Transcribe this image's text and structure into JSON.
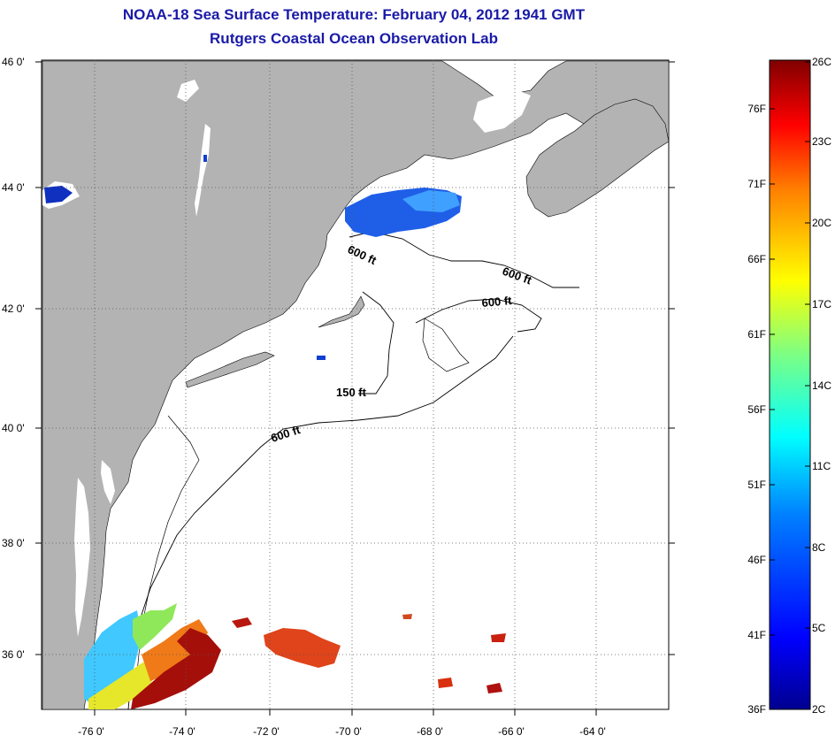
{
  "header": {
    "title": "NOAA-18 Sea Surface Temperature:  February 04, 2012 1941 GMT",
    "subtitle": "Rutgers Coastal Ocean Observation Lab"
  },
  "map": {
    "lat_labels": [
      "46 0'",
      "44 0'",
      "42 0'",
      "40 0'",
      "38 0'",
      "36 0'"
    ],
    "lon_labels": [
      "-76 0'",
      "-74 0'",
      "-72 0'",
      "-70 0'",
      "-68 0'",
      "-66 0'",
      "-64 0'"
    ],
    "contour_labels": [
      "600 ft",
      "600 ft",
      "600 ft",
      "150 ft",
      "600 ft"
    ],
    "colors": {
      "land": "#b3b3b3",
      "ocean": "#ffffff",
      "grid": "#555555"
    }
  },
  "colorbar": {
    "fahrenheit_labels": [
      "76F",
      "71F",
      "66F",
      "61F",
      "56F",
      "51F",
      "46F",
      "41F",
      "36F"
    ],
    "celsius_labels": [
      "26C",
      "23C",
      "20C",
      "17C",
      "14C",
      "11C",
      "8C",
      "5C",
      "2C"
    ],
    "colors": [
      "#00008f",
      "#0000ff",
      "#0080ff",
      "#00ffff",
      "#80ff80",
      "#ffff00",
      "#ff8000",
      "#ff0000",
      "#800000"
    ]
  }
}
